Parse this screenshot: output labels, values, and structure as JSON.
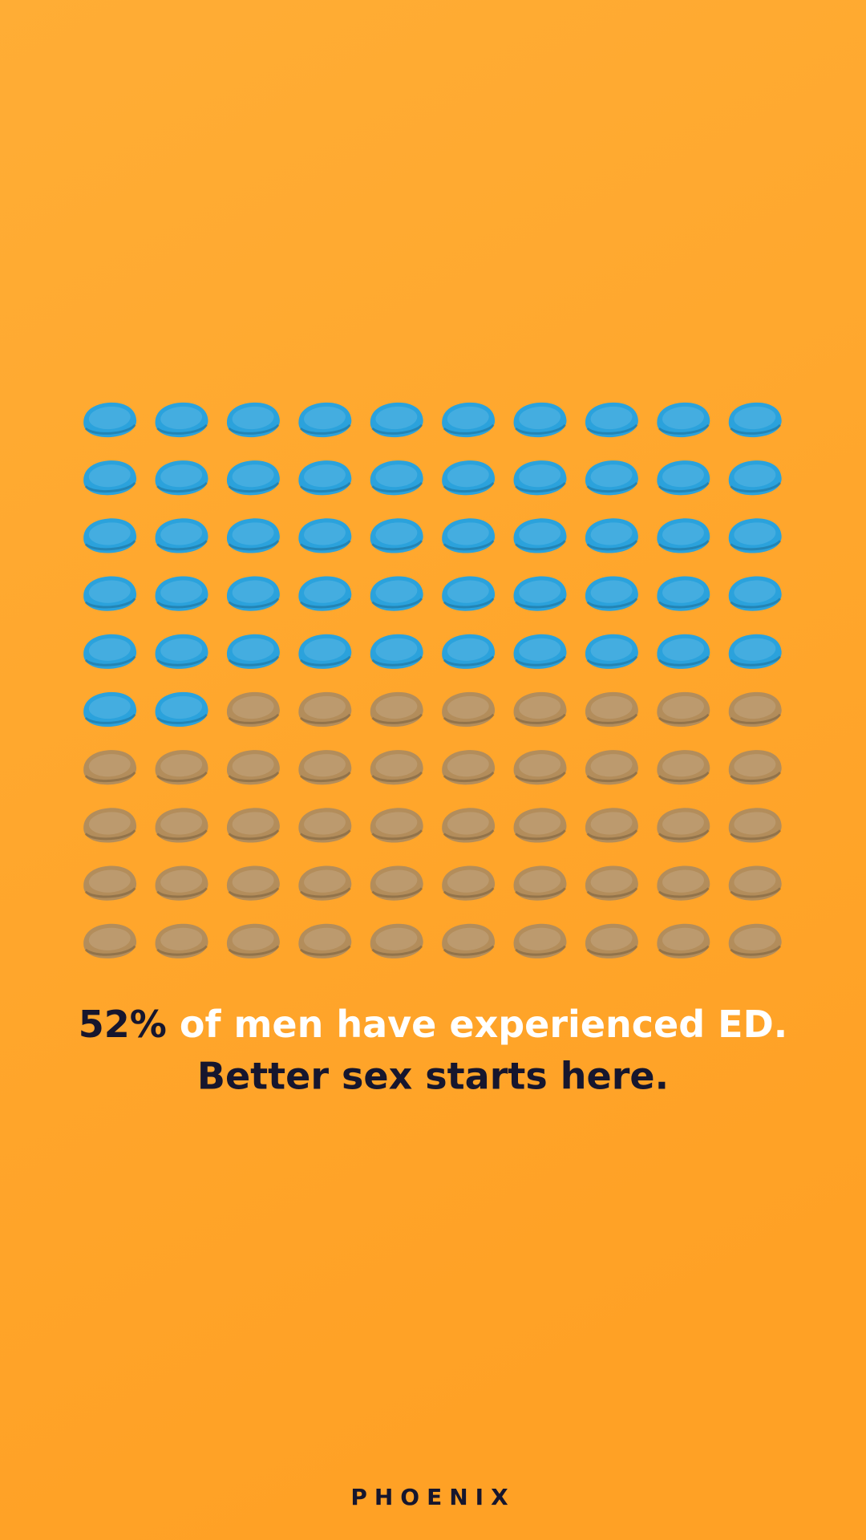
{
  "chart_data": {
    "type": "waffle",
    "values": [
      52,
      48
    ],
    "value_labels": [
      "52%",
      null
    ],
    "colors": [
      "#2ba2dc",
      "#b38d5b"
    ],
    "caption": "of men have experienced ED.",
    "subtitle": "Better sex starts here.",
    "brand": "PHOENIX"
  }
}
